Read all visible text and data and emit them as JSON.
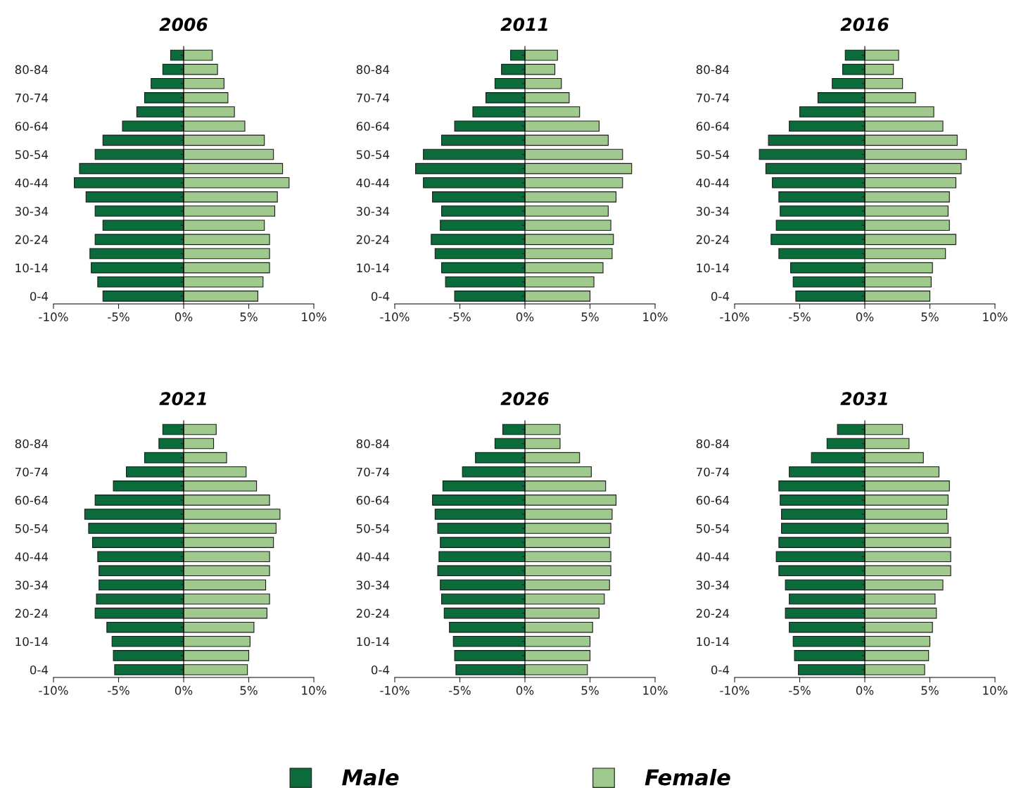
{
  "chart_data": [
    {
      "type": "bar",
      "orientation": "horizontal",
      "stacked": true,
      "title": "2006",
      "legend": "bottom",
      "categories": [
        null,
        "80-84",
        null,
        "70-74",
        null,
        "60-64",
        null,
        "50-54",
        null,
        "40-44",
        null,
        "30-34",
        null,
        "20-24",
        null,
        "10-14",
        null,
        "0-4"
      ],
      "xlim": [
        -10,
        10
      ],
      "xticks": [
        {
          "value": -10,
          "label": "-10%"
        },
        {
          "value": -5,
          "label": "-5%"
        },
        {
          "value": 0,
          "label": "0%"
        },
        {
          "value": 5,
          "label": "5%"
        },
        {
          "value": 10,
          "label": "10%"
        }
      ],
      "series": [
        {
          "name": "Male",
          "color": "#0b6b3a",
          "values": [
            -1.0,
            -1.6,
            -2.5,
            -3.0,
            -3.6,
            -4.7,
            -6.2,
            -6.8,
            -8.0,
            -8.4,
            -7.5,
            -6.8,
            -6.2,
            -6.8,
            -7.2,
            -7.1,
            -6.6,
            -6.2
          ]
        },
        {
          "name": "Female",
          "color": "#a0c98e",
          "values": [
            2.2,
            2.6,
            3.1,
            3.4,
            3.9,
            4.7,
            6.2,
            6.9,
            7.6,
            8.1,
            7.2,
            7.0,
            6.2,
            6.6,
            6.6,
            6.6,
            6.1,
            5.7
          ]
        }
      ]
    },
    {
      "type": "bar",
      "orientation": "horizontal",
      "stacked": true,
      "title": "2011",
      "categories": [
        null,
        "80-84",
        null,
        "70-74",
        null,
        "60-64",
        null,
        "50-54",
        null,
        "40-44",
        null,
        "30-34",
        null,
        "20-24",
        null,
        "10-14",
        null,
        "0-4"
      ],
      "xlim": [
        -10,
        10
      ],
      "xticks": [
        {
          "value": -10,
          "label": "-10%"
        },
        {
          "value": -5,
          "label": "-5%"
        },
        {
          "value": 0,
          "label": "0%"
        },
        {
          "value": 5,
          "label": "5%"
        },
        {
          "value": 10,
          "label": "10%"
        }
      ],
      "series": [
        {
          "color": "#0b6b3a",
          "values": [
            -1.1,
            -1.8,
            -2.3,
            -3.0,
            -4.0,
            -5.4,
            -6.4,
            -7.8,
            -8.4,
            -7.8,
            -7.1,
            -6.4,
            -6.5,
            -7.2,
            -6.9,
            -6.4,
            -6.1,
            -5.4
          ]
        },
        {
          "color": "#a0c98e",
          "values": [
            2.5,
            2.3,
            2.8,
            3.4,
            4.2,
            5.7,
            6.4,
            7.5,
            8.2,
            7.5,
            7.0,
            6.4,
            6.6,
            6.8,
            6.7,
            6.0,
            5.3,
            5.0
          ]
        }
      ]
    },
    {
      "type": "bar",
      "orientation": "horizontal",
      "stacked": true,
      "title": "2016",
      "categories": [
        null,
        "80-84",
        null,
        "70-74",
        null,
        "60-64",
        null,
        "50-54",
        null,
        "40-44",
        null,
        "30-34",
        null,
        "20-24",
        null,
        "10-14",
        null,
        "0-4"
      ],
      "xlim": [
        -10,
        10
      ],
      "xticks": [
        {
          "value": -10,
          "label": "-10%"
        },
        {
          "value": -5,
          "label": "-5%"
        },
        {
          "value": 0,
          "label": "0%"
        },
        {
          "value": 5,
          "label": "5%"
        },
        {
          "value": 10,
          "label": "10%"
        }
      ],
      "series": [
        {
          "color": "#0b6b3a",
          "values": [
            -1.5,
            -1.7,
            -2.5,
            -3.6,
            -5.0,
            -5.8,
            -7.4,
            -8.1,
            -7.6,
            -7.1,
            -6.6,
            -6.5,
            -6.8,
            -7.2,
            -6.6,
            -5.7,
            -5.5,
            -5.3
          ]
        },
        {
          "color": "#a0c98e",
          "values": [
            2.6,
            2.2,
            2.9,
            3.9,
            5.3,
            6.0,
            7.1,
            7.8,
            7.4,
            7.0,
            6.5,
            6.4,
            6.5,
            7.0,
            6.2,
            5.2,
            5.1,
            5.0
          ]
        }
      ]
    },
    {
      "type": "bar",
      "orientation": "horizontal",
      "stacked": true,
      "title": "2021",
      "categories": [
        null,
        "80-84",
        null,
        "70-74",
        null,
        "60-64",
        null,
        "50-54",
        null,
        "40-44",
        null,
        "30-34",
        null,
        "20-24",
        null,
        "10-14",
        null,
        "0-4"
      ],
      "xlim": [
        -10,
        10
      ],
      "xticks": [
        {
          "value": -10,
          "label": "-10%"
        },
        {
          "value": -5,
          "label": "-5%"
        },
        {
          "value": 0,
          "label": "0%"
        },
        {
          "value": 5,
          "label": "5%"
        },
        {
          "value": 10,
          "label": "10%"
        }
      ],
      "series": [
        {
          "color": "#0b6b3a",
          "values": [
            -1.6,
            -1.9,
            -3.0,
            -4.4,
            -5.4,
            -6.8,
            -7.6,
            -7.3,
            -7.0,
            -6.6,
            -6.5,
            -6.5,
            -6.7,
            -6.8,
            -5.9,
            -5.5,
            -5.4,
            -5.3
          ]
        },
        {
          "color": "#a0c98e",
          "values": [
            2.5,
            2.3,
            3.3,
            4.8,
            5.6,
            6.6,
            7.4,
            7.1,
            6.9,
            6.6,
            6.6,
            6.3,
            6.6,
            6.4,
            5.4,
            5.1,
            5.0,
            4.9
          ]
        }
      ]
    },
    {
      "type": "bar",
      "orientation": "horizontal",
      "stacked": true,
      "title": "2026",
      "categories": [
        null,
        "80-84",
        null,
        "70-74",
        null,
        "60-64",
        null,
        "50-54",
        null,
        "40-44",
        null,
        "30-34",
        null,
        "20-24",
        null,
        "10-14",
        null,
        "0-4"
      ],
      "xlim": [
        -10,
        10
      ],
      "xticks": [
        {
          "value": -10,
          "label": "-10%"
        },
        {
          "value": -5,
          "label": "-5%"
        },
        {
          "value": 0,
          "label": "0%"
        },
        {
          "value": 5,
          "label": "5%"
        },
        {
          "value": 10,
          "label": "10%"
        }
      ],
      "series": [
        {
          "color": "#0b6b3a",
          "values": [
            -1.7,
            -2.3,
            -3.8,
            -4.8,
            -6.3,
            -7.1,
            -6.9,
            -6.7,
            -6.5,
            -6.6,
            -6.7,
            -6.5,
            -6.4,
            -6.2,
            -5.8,
            -5.5,
            -5.4,
            -5.3
          ]
        },
        {
          "color": "#a0c98e",
          "values": [
            2.7,
            2.7,
            4.2,
            5.1,
            6.2,
            7.0,
            6.7,
            6.6,
            6.5,
            6.6,
            6.6,
            6.5,
            6.1,
            5.7,
            5.2,
            5.0,
            5.0,
            4.8
          ]
        }
      ]
    },
    {
      "type": "bar",
      "orientation": "horizontal",
      "stacked": true,
      "title": "2031",
      "categories": [
        null,
        "80-84",
        null,
        "70-74",
        null,
        "60-64",
        null,
        "50-54",
        null,
        "40-44",
        null,
        "30-34",
        null,
        "20-24",
        null,
        "10-14",
        null,
        "0-4"
      ],
      "xlim": [
        -10,
        10
      ],
      "xticks": [
        {
          "value": -10,
          "label": "-10%"
        },
        {
          "value": -5,
          "label": "-5%"
        },
        {
          "value": 0,
          "label": "0%"
        },
        {
          "value": 5,
          "label": "5%"
        },
        {
          "value": 10,
          "label": "10%"
        }
      ],
      "series": [
        {
          "color": "#0b6b3a",
          "values": [
            -2.1,
            -2.9,
            -4.1,
            -5.8,
            -6.6,
            -6.5,
            -6.4,
            -6.4,
            -6.6,
            -6.8,
            -6.6,
            -6.1,
            -5.8,
            -6.1,
            -5.8,
            -5.5,
            -5.4,
            -5.1
          ]
        },
        {
          "color": "#a0c98e",
          "values": [
            2.9,
            3.4,
            4.5,
            5.7,
            6.5,
            6.4,
            6.3,
            6.4,
            6.6,
            6.6,
            6.6,
            6.0,
            5.4,
            5.5,
            5.2,
            5.0,
            4.9,
            4.6
          ]
        }
      ]
    }
  ]
}
